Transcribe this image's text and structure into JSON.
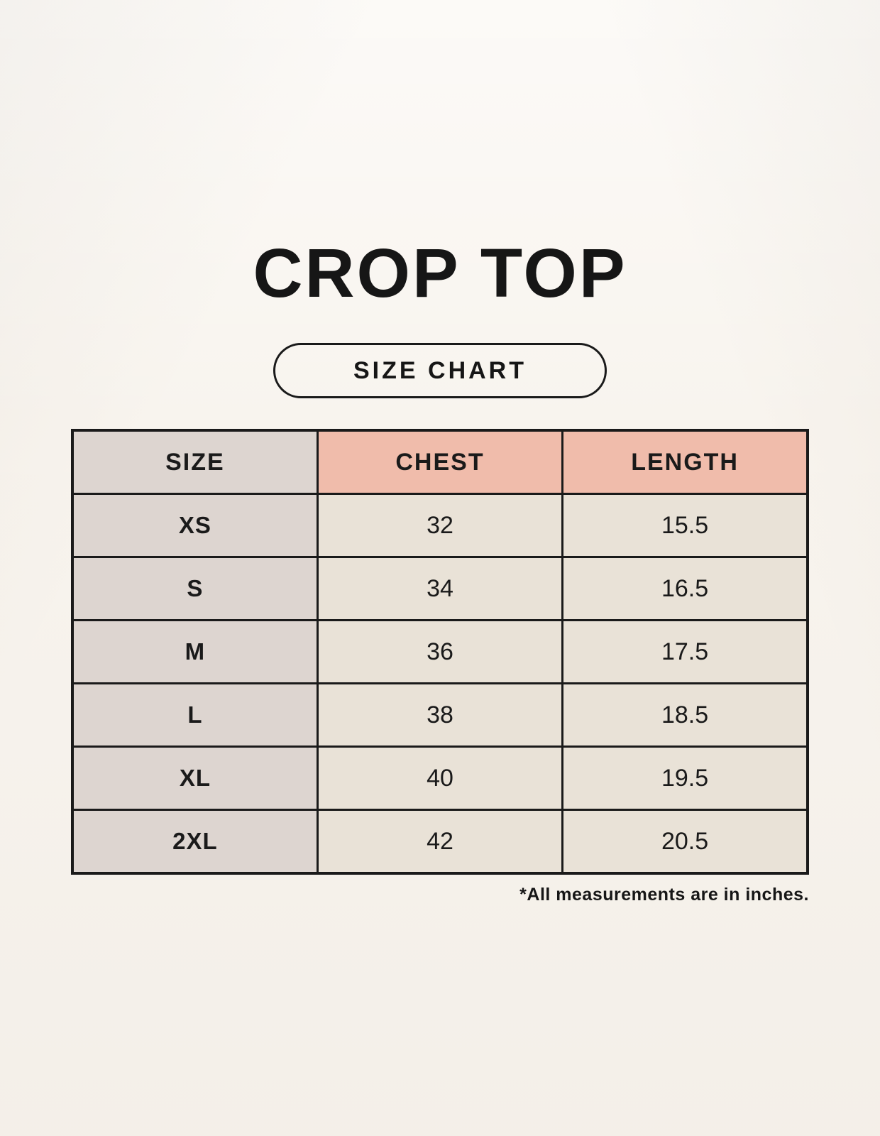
{
  "page": {
    "title": "CROP TOP",
    "badge_label": "SIZE CHART",
    "note": "*All measurements are in inches."
  },
  "colors": {
    "background": "#f8f4ee",
    "size_column_bg": "#ddd5d0",
    "measure_header_bg": "#f0bcab",
    "value_cell_bg": "#e9e2d7",
    "border": "#1a1a1a",
    "text": "#161616"
  },
  "chart_data": {
    "type": "table",
    "title": "CROP TOP",
    "subtitle": "SIZE CHART",
    "columns": [
      "SIZE",
      "CHEST",
      "LENGTH"
    ],
    "rows": [
      {
        "size": "XS",
        "chest": "32",
        "length": "15.5"
      },
      {
        "size": "S",
        "chest": "34",
        "length": "16.5"
      },
      {
        "size": "M",
        "chest": "36",
        "length": "17.5"
      },
      {
        "size": "L",
        "chest": "38",
        "length": "18.5"
      },
      {
        "size": "XL",
        "chest": "40",
        "length": "19.5"
      },
      {
        "size": "2XL",
        "chest": "42",
        "length": "20.5"
      }
    ],
    "unit_note": "*All measurements are in inches.",
    "layout": {
      "header_row": true,
      "grid": true,
      "note_alignment": "right"
    }
  }
}
